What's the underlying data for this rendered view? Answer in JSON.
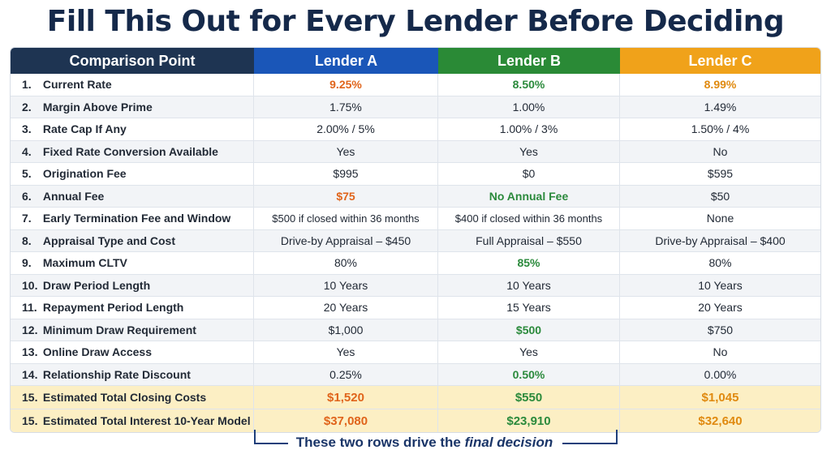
{
  "title": "Fill This Out for Every Lender Before Deciding",
  "header": {
    "point": "Comparison Point",
    "a": "Lender A",
    "b": "Lender B",
    "c": "Lender C"
  },
  "colors": {
    "header_point": "#1e3452",
    "header_a": "#1a56b8",
    "header_b": "#2a8a36",
    "header_c": "#f0a21a",
    "highlight_row": "#fcefc4"
  },
  "rows": [
    {
      "num": "1.",
      "label": "Current Rate",
      "a": "9.25%",
      "b": "8.50%",
      "c": "8.99%"
    },
    {
      "num": "2.",
      "label": "Margin Above Prime",
      "a": "1.75%",
      "b": "1.00%",
      "c": "1.49%"
    },
    {
      "num": "3.",
      "label": "Rate Cap If Any",
      "a": "2.00% / 5%",
      "b": "1.00% / 3%",
      "c": "1.50% / 4%"
    },
    {
      "num": "4.",
      "label": "Fixed Rate Conversion Available",
      "a": "Yes",
      "b": "Yes",
      "c": "No"
    },
    {
      "num": "5.",
      "label": "Origination Fee",
      "a": "$995",
      "b": "$0",
      "c": "$595"
    },
    {
      "num": "6.",
      "label": "Annual Fee",
      "a": "$75",
      "b": "No Annual Fee",
      "c": "$50"
    },
    {
      "num": "7.",
      "label": "Early Termination Fee and Window",
      "a": "$500 if closed within 36 months",
      "b": "$400 if closed within 36 months",
      "c": "None"
    },
    {
      "num": "8.",
      "label": "Appraisal Type and Cost",
      "a": "Drive-by Appraisal – $450",
      "b": "Full Appraisal – $550",
      "c": "Drive-by Appraisal – $400"
    },
    {
      "num": "9.",
      "label": "Maximum CLTV",
      "a": "80%",
      "b": "85%",
      "c": "80%"
    },
    {
      "num": "10.",
      "label": "Draw Period Length",
      "a": "10 Years",
      "b": "10 Years",
      "c": "10 Years"
    },
    {
      "num": "11.",
      "label": "Repayment Period Length",
      "a": "20 Years",
      "b": "15 Years",
      "c": "20 Years"
    },
    {
      "num": "12.",
      "label": "Minimum Draw Requirement",
      "a": "$1,000",
      "b": "$500",
      "c": "$750"
    },
    {
      "num": "13.",
      "label": "Online Draw Access",
      "a": "Yes",
      "b": "Yes",
      "c": "No"
    },
    {
      "num": "14.",
      "label": "Relationship Rate Discount",
      "a": "0.25%",
      "b": "0.50%",
      "c": "0.00%"
    }
  ],
  "key_rows": [
    {
      "num": "15.",
      "label": "Estimated Total Closing Costs",
      "a": "$1,520",
      "b": "$550",
      "c": "$1,045"
    },
    {
      "num": "15.",
      "label": "Estimated Total Interest 10-Year Model",
      "a": "$37,080",
      "b": "$23,910",
      "c": "$32,640"
    }
  ],
  "caption": {
    "prefix": "These two rows drive the ",
    "emphasis": "final decision"
  }
}
